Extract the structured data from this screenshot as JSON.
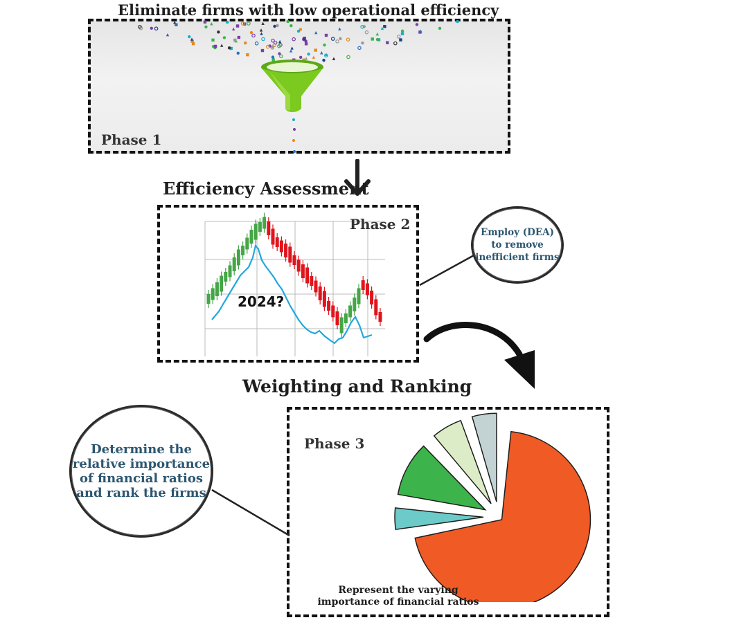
{
  "phase1": {
    "title": "Eliminate firms with low operational efficiency",
    "label": "Phase 1",
    "icon": "funnel-icon"
  },
  "phase2": {
    "heading": "Efficiency Assessment",
    "label": "Phase 2",
    "chart_overlay_text": "2024?",
    "bubble_text": "Employ (DEA)\nto remove\ninefficient firms",
    "icon": "candlestick-chart-icon"
  },
  "phase3": {
    "heading": "Weighting and Ranking",
    "label": "Phase 3",
    "bubble_text": "Determine the\nrelative importance\nof financial ratios\nand rank the firms",
    "caption": "Represent the varying\nimportance of financial ratios",
    "icon": "pie-chart-icon"
  },
  "colors": {
    "funnel": "#7cc91f",
    "bull": "#44a646",
    "bear": "#e0141c",
    "trend_line": "#22a8dc",
    "pie_main": "#f05a25",
    "pie_teal": "#6ccac8",
    "pie_green": "#3cb44b",
    "pie_light": "#dcecc6",
    "pie_gray": "#c3d3d3",
    "bubble_text": "#2c5670"
  }
}
